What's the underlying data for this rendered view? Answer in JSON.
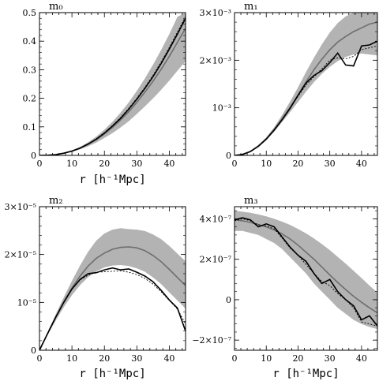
{
  "chart_data": [
    {
      "type": "line",
      "title": "m₀",
      "xlabel": "r [h⁻¹Mpc]",
      "xlim": [
        0,
        45
      ],
      "ylim": [
        0,
        0.5
      ],
      "xticks": [
        0,
        10,
        20,
        30,
        40
      ],
      "yticks": [
        {
          "value": 0,
          "label": "0"
        },
        {
          "value": 0.1,
          "label": "0.1"
        },
        {
          "value": 0.2,
          "label": "0.2"
        },
        {
          "value": 0.3,
          "label": "0.3"
        },
        {
          "value": 0.4,
          "label": "0.4"
        },
        {
          "value": 0.5,
          "label": "0.5"
        }
      ],
      "x": [
        0,
        2.5,
        5,
        7.5,
        10,
        12.5,
        15,
        17.5,
        20,
        22.5,
        25,
        27.5,
        30,
        32.5,
        35,
        37.5,
        40,
        42.5,
        45
      ],
      "band_lower": [
        0,
        0.0004,
        0.0022,
        0.0062,
        0.0125,
        0.021,
        0.032,
        0.045,
        0.061,
        0.078,
        0.098,
        0.12,
        0.145,
        0.172,
        0.2,
        0.23,
        0.262,
        0.296,
        0.33
      ],
      "band_upper": [
        0,
        0.0006,
        0.0032,
        0.0088,
        0.0175,
        0.03,
        0.046,
        0.066,
        0.09,
        0.118,
        0.15,
        0.186,
        0.226,
        0.27,
        0.318,
        0.37,
        0.425,
        0.485,
        0.5
      ],
      "mean": [
        0,
        0.0005,
        0.0027,
        0.0075,
        0.015,
        0.025,
        0.039,
        0.055,
        0.075,
        0.098,
        0.124,
        0.153,
        0.186,
        0.222,
        0.26,
        0.302,
        0.347,
        0.396,
        0.445
      ],
      "solid": [
        0,
        0.0005,
        0.0028,
        0.0076,
        0.0152,
        0.0255,
        0.04,
        0.057,
        0.078,
        0.103,
        0.13,
        0.162,
        0.197,
        0.235,
        0.276,
        0.322,
        0.372,
        0.425,
        0.48
      ],
      "dotted": [
        0,
        0.0005,
        0.0028,
        0.0077,
        0.0154,
        0.026,
        0.041,
        0.058,
        0.08,
        0.105,
        0.133,
        0.165,
        0.2,
        0.239,
        0.281,
        0.328,
        0.378,
        0.432,
        0.486
      ]
    },
    {
      "type": "line",
      "title": "m₁",
      "xlabel": "",
      "xlim": [
        0,
        45
      ],
      "ylim": [
        0,
        0.003
      ],
      "xticks": [
        0,
        10,
        20,
        30,
        40
      ],
      "yticks": [
        {
          "value": 0,
          "label": "0"
        },
        {
          "value": 0.001,
          "label": "10⁻³"
        },
        {
          "value": 0.002,
          "label": "2×10⁻³"
        },
        {
          "value": 0.003,
          "label": "3×10⁻³"
        }
      ],
      "x": [
        0,
        2.5,
        5,
        7.5,
        10,
        12.5,
        15,
        17.5,
        20,
        22.5,
        25,
        27.5,
        30,
        32.5,
        35,
        37.5,
        40,
        42.5,
        45
      ],
      "band_lower": [
        0,
        2e-05,
        8e-05,
        0.00019,
        0.00033,
        0.0005,
        0.0007,
        0.00091,
        0.00112,
        0.00134,
        0.00154,
        0.00171,
        0.00186,
        0.00198,
        0.00207,
        0.00212,
        0.00214,
        0.00212,
        0.0021
      ],
      "band_upper": [
        0,
        2e-05,
        9e-05,
        0.00021,
        0.00038,
        0.00059,
        0.00085,
        0.00113,
        0.00143,
        0.00175,
        0.00205,
        0.00233,
        0.00258,
        0.00278,
        0.00292,
        0.003,
        0.003,
        0.003,
        0.003
      ],
      "mean": [
        0,
        2e-05,
        8.5e-05,
        0.0002,
        0.00035,
        0.00055,
        0.00077,
        0.00101,
        0.00127,
        0.00154,
        0.0018,
        0.00202,
        0.00222,
        0.00238,
        0.0025,
        0.0026,
        0.00268,
        0.00276,
        0.0028
      ],
      "solid": [
        0,
        2e-05,
        8e-05,
        0.00019,
        0.00034,
        0.00053,
        0.00075,
        0.00099,
        0.00126,
        0.00152,
        0.00168,
        0.00178,
        0.00195,
        0.00215,
        0.0019,
        0.00188,
        0.0023,
        0.00232,
        0.0024
      ],
      "dotted": [
        0,
        2e-05,
        8e-05,
        0.00019,
        0.00034,
        0.00054,
        0.00076,
        0.001,
        0.00124,
        0.00148,
        0.00165,
        0.00182,
        0.002,
        0.00205,
        0.00203,
        0.00208,
        0.00222,
        0.00226,
        0.0023
      ]
    },
    {
      "type": "line",
      "title": "m₂",
      "xlabel": "r [h⁻¹Mpc]",
      "xlim": [
        0,
        45
      ],
      "ylim": [
        0,
        3e-05
      ],
      "xticks": [
        0,
        10,
        20,
        30,
        40
      ],
      "yticks": [
        {
          "value": 0,
          "label": "0"
        },
        {
          "value": 1e-05,
          "label": "10⁻⁵"
        },
        {
          "value": 2e-05,
          "label": "2×10⁻⁵"
        },
        {
          "value": 3e-05,
          "label": "3×10⁻⁵"
        }
      ],
      "x": [
        0,
        2.5,
        5,
        7.5,
        10,
        12.5,
        15,
        17.5,
        20,
        22.5,
        25,
        27.5,
        30,
        32.5,
        35,
        37.5,
        40,
        42.5,
        45
      ],
      "band_lower": [
        0,
        3.2e-06,
        6.2e-06,
        9e-06,
        1.15e-05,
        1.36e-05,
        1.53e-05,
        1.65e-05,
        1.73e-05,
        1.77e-05,
        1.78e-05,
        1.76e-05,
        1.71e-05,
        1.64e-05,
        1.52e-05,
        1.38e-05,
        1.21e-05,
        1.04e-05,
        8.7e-06
      ],
      "band_upper": [
        0,
        3.8e-06,
        7.5e-06,
        1.11e-05,
        1.45e-05,
        1.77e-05,
        2.06e-05,
        2.29e-05,
        2.44e-05,
        2.52e-05,
        2.55e-05,
        2.53e-05,
        2.52e-05,
        2.49e-05,
        2.42e-05,
        2.32e-05,
        2.18e-05,
        2.02e-05,
        1.86e-05
      ],
      "mean": [
        0,
        3.5e-06,
        6.9e-06,
        1.01e-05,
        1.3e-05,
        1.55e-05,
        1.76e-05,
        1.92e-05,
        2.03e-05,
        2.11e-05,
        2.15e-05,
        2.16e-05,
        2.14e-05,
        2.08e-05,
        1.98e-05,
        1.85e-05,
        1.69e-05,
        1.52e-05,
        1.35e-05
      ],
      "solid": [
        0,
        3.5e-06,
        6.9e-06,
        1e-05,
        1.28e-05,
        1.48e-05,
        1.6e-05,
        1.62e-05,
        1.68e-05,
        1.72e-05,
        1.68e-05,
        1.7e-05,
        1.63e-05,
        1.55e-05,
        1.43e-05,
        1.25e-05,
        1.05e-05,
        8.8e-06,
        4e-06
      ],
      "dotted": [
        0,
        3.4e-06,
        6.8e-06,
        1e-05,
        1.27e-05,
        1.47e-05,
        1.57e-05,
        1.63e-05,
        1.64e-05,
        1.65e-05,
        1.66e-05,
        1.63e-05,
        1.58e-05,
        1.5e-05,
        1.38e-05,
        1.22e-05,
        1.04e-05,
        8.6e-06,
        5.5e-06
      ]
    },
    {
      "type": "line",
      "title": "m₃",
      "xlabel": "r [h⁻¹Mpc]",
      "xlim": [
        0,
        45
      ],
      "ylim": [
        -2.5e-07,
        4.6e-07
      ],
      "xticks": [
        0,
        10,
        20,
        30,
        40
      ],
      "yticks": [
        {
          "value": -2e-07,
          "label": "−2×10⁻⁷"
        },
        {
          "value": 0,
          "label": "0"
        },
        {
          "value": 2e-07,
          "label": "2×10⁻⁷"
        },
        {
          "value": 4e-07,
          "label": "4×10⁻⁷"
        }
      ],
      "x": [
        0,
        2.5,
        5,
        7.5,
        10,
        12.5,
        15,
        17.5,
        20,
        22.5,
        25,
        27.5,
        30,
        32.5,
        35,
        37.5,
        40,
        42.5,
        45
      ],
      "band_lower": [
        3.4e-07,
        3.4e-07,
        3.3e-07,
        3.2e-07,
        3e-07,
        2.8e-07,
        2.5e-07,
        2.1e-07,
        1.7e-07,
        1.3e-07,
        8e-08,
        4e-08,
        0,
        -4e-08,
        -7e-08,
        -1e-07,
        -1.2e-07,
        -1.35e-07,
        -1.45e-07
      ],
      "band_upper": [
        4.4e-07,
        4.35e-07,
        4.3e-07,
        4.22e-07,
        4.12e-07,
        4e-07,
        3.86e-07,
        3.7e-07,
        3.5e-07,
        3.28e-07,
        3.03e-07,
        2.75e-07,
        2.45e-07,
        2.12e-07,
        1.78e-07,
        1.43e-07,
        1.07e-07,
        7e-08,
        3.5e-08
      ],
      "mean": [
        3.95e-07,
        3.9e-07,
        3.82e-07,
        3.72e-07,
        3.6e-07,
        3.45e-07,
        3.25e-07,
        3e-07,
        2.7e-07,
        2.35e-07,
        2e-07,
        1.62e-07,
        1.22e-07,
        8.5e-08,
        5e-08,
        1.7e-08,
        -1.3e-08,
        -4e-08,
        -6.5e-08
      ],
      "solid": [
        3.95e-07,
        4.05e-07,
        3.95e-07,
        3.6e-07,
        3.75e-07,
        3.6e-07,
        3.1e-07,
        2.6e-07,
        2.2e-07,
        1.9e-07,
        1.3e-07,
        8e-08,
        1e-07,
        4e-08,
        0,
        -3e-08,
        -1e-07,
        -8e-08,
        -1.3e-07
      ],
      "dotted": [
        3.9e-07,
        4e-07,
        3.9e-07,
        3.7e-07,
        3.65e-07,
        3.5e-07,
        3.05e-07,
        2.55e-07,
        2.2e-07,
        1.75e-07,
        1.3e-07,
        9e-08,
        7e-08,
        3e-08,
        0,
        -4e-08,
        -1.1e-07,
        -1.2e-07,
        -1.3e-07
      ]
    }
  ]
}
